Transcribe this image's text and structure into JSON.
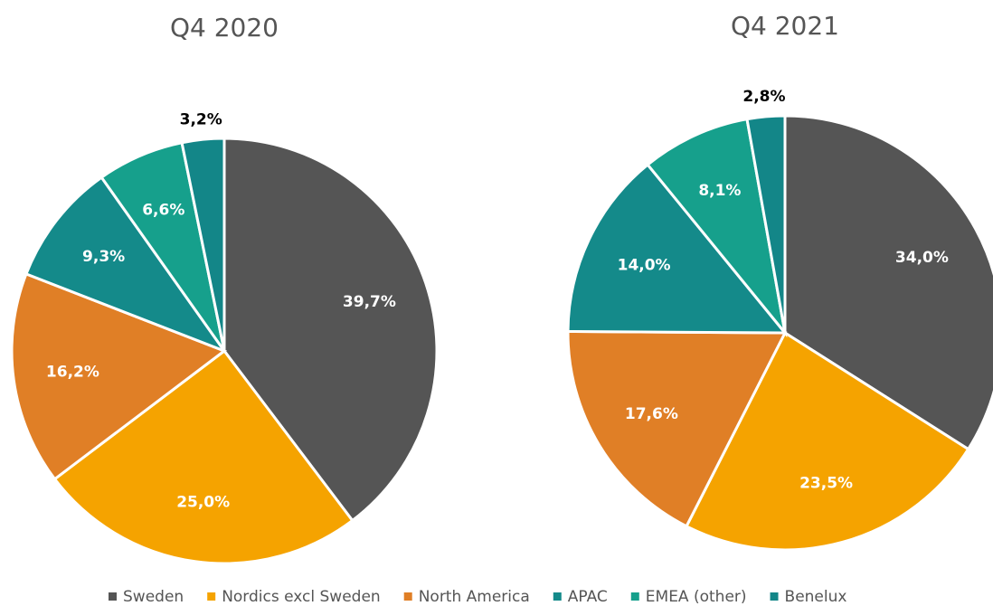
{
  "chart_data": [
    {
      "type": "pie",
      "title": "Q4 2020",
      "values": [
        39.7,
        25.0,
        16.2,
        9.3,
        6.6,
        3.2
      ],
      "value_labels": [
        "39,7%",
        "25,0%",
        "16,2%",
        "9,3%",
        "6,6%",
        "3,2%"
      ]
    },
    {
      "type": "pie",
      "title": "Q4 2021",
      "values": [
        34.0,
        23.5,
        17.6,
        14.0,
        8.1,
        2.8
      ],
      "value_labels": [
        "34,0%",
        "23,5%",
        "17,6%",
        "14,0%",
        "8,1%",
        "2,8%"
      ]
    }
  ],
  "legend": {
    "labels": [
      "Sweden",
      "Nordics excl Sweden",
      "North America",
      "APAC",
      "EMEA (other)",
      "Benelux"
    ],
    "colors": [
      "#555555",
      "#f5a300",
      "#e07f26",
      "#148a8a",
      "#16a08c",
      "#138688"
    ]
  }
}
